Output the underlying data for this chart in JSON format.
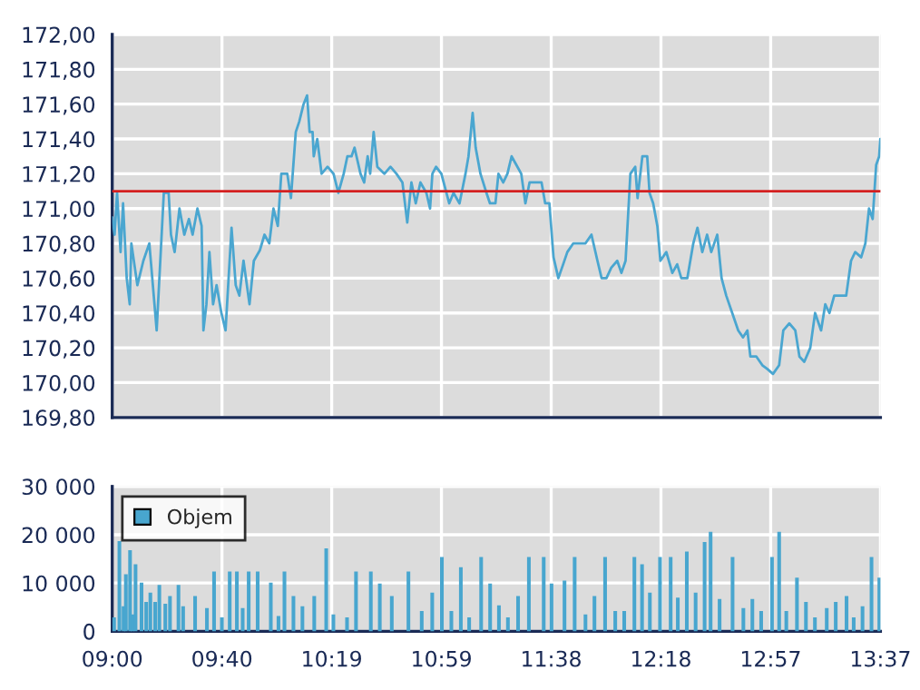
{
  "chart_data": [
    {
      "type": "line",
      "grid": true,
      "tick_labels": "y",
      "xlim": [
        9.0,
        13.6167
      ],
      "ylim": [
        169.8,
        172.0
      ],
      "xticks": [
        {
          "value": 9.0,
          "label": null
        },
        {
          "value": 9.6595,
          "label": null
        },
        {
          "value": 10.319,
          "label": null
        },
        {
          "value": 10.9786,
          "label": null
        },
        {
          "value": 11.6381,
          "label": null
        },
        {
          "value": 12.2976,
          "label": null
        },
        {
          "value": 12.9571,
          "label": null
        },
        {
          "value": 13.6167,
          "label": null
        }
      ],
      "yticks": [
        {
          "value": 169.8,
          "label": "169,80"
        },
        {
          "value": 170.0,
          "label": "170,00"
        },
        {
          "value": 170.2,
          "label": "170,20"
        },
        {
          "value": 170.4,
          "label": "170,40"
        },
        {
          "value": 170.6,
          "label": "170,60"
        },
        {
          "value": 170.8,
          "label": "170,80"
        },
        {
          "value": 171.0,
          "label": "171,00"
        },
        {
          "value": 171.2,
          "label": "171,20"
        },
        {
          "value": 171.4,
          "label": "171,40"
        },
        {
          "value": 171.6,
          "label": "171,60"
        },
        {
          "value": 171.8,
          "label": "171,80"
        },
        {
          "value": 172.0,
          "label": "172,00"
        }
      ],
      "ref_lines": [
        {
          "axis": "y",
          "value": 171.1,
          "color": "#d42020"
        }
      ],
      "series": [
        {
          "color": "#4aa6d0",
          "x": [
            9.0,
            9.014,
            9.029,
            9.05,
            9.065,
            9.087,
            9.105,
            9.115,
            9.151,
            9.187,
            9.223,
            9.267,
            9.31,
            9.339,
            9.353,
            9.375,
            9.404,
            9.433,
            9.461,
            9.483,
            9.512,
            9.537,
            9.548,
            9.566,
            9.584,
            9.606,
            9.627,
            9.656,
            9.681,
            9.717,
            9.742,
            9.764,
            9.789,
            9.825,
            9.851,
            9.887,
            9.915,
            9.944,
            9.969,
            9.995,
            10.016,
            10.052,
            10.074,
            10.103,
            10.124,
            10.15,
            10.171,
            10.186,
            10.204,
            10.211,
            10.232,
            10.258,
            10.294,
            10.33,
            10.359,
            10.391,
            10.413,
            10.438,
            10.456,
            10.492,
            10.514,
            10.535,
            10.55,
            10.571,
            10.593,
            10.636,
            10.672,
            10.708,
            10.744,
            10.773,
            10.798,
            10.824,
            10.852,
            10.888,
            10.91,
            10.924,
            10.946,
            10.978,
            11.025,
            11.051,
            11.087,
            11.123,
            11.141,
            11.166,
            11.184,
            11.213,
            11.249,
            11.27,
            11.303,
            11.321,
            11.35,
            11.375,
            11.4,
            11.429,
            11.458,
            11.483,
            11.508,
            11.537,
            11.58,
            11.602,
            11.627,
            11.652,
            11.681,
            11.71,
            11.735,
            11.771,
            11.844,
            11.88,
            11.916,
            11.941,
            11.97,
            11.999,
            12.035,
            12.06,
            12.085,
            12.114,
            12.143,
            12.157,
            12.186,
            12.215,
            12.229,
            12.251,
            12.276,
            12.294,
            12.33,
            12.366,
            12.395,
            12.42,
            12.456,
            12.492,
            12.517,
            12.546,
            12.575,
            12.6,
            12.636,
            12.662,
            12.69,
            12.726,
            12.762,
            12.791,
            12.817,
            12.835,
            12.871,
            12.907,
            12.935,
            12.971,
            13.008,
            13.033,
            13.069,
            13.105,
            13.13,
            13.159,
            13.195,
            13.224,
            13.26,
            13.285,
            13.31,
            13.339,
            13.375,
            13.411,
            13.44,
            13.465,
            13.501,
            13.526,
            13.548,
            13.57,
            13.591,
            13.609,
            13.616
          ],
          "values": [
            170.95,
            170.85,
            171.09,
            170.75,
            171.03,
            170.6,
            170.45,
            170.8,
            170.56,
            170.7,
            170.8,
            170.3,
            171.09,
            171.09,
            170.85,
            170.75,
            171.0,
            170.85,
            170.94,
            170.85,
            171.0,
            170.9,
            170.3,
            170.45,
            170.75,
            170.45,
            170.56,
            170.4,
            170.3,
            170.89,
            170.56,
            170.5,
            170.7,
            170.45,
            170.7,
            170.76,
            170.85,
            170.8,
            171.0,
            170.9,
            171.2,
            171.2,
            171.06,
            171.44,
            171.5,
            171.6,
            171.65,
            171.44,
            171.44,
            171.3,
            171.4,
            171.2,
            171.24,
            171.2,
            171.09,
            171.2,
            171.3,
            171.3,
            171.35,
            171.2,
            171.15,
            171.3,
            171.2,
            171.44,
            171.24,
            171.2,
            171.24,
            171.2,
            171.15,
            170.92,
            171.15,
            171.03,
            171.15,
            171.09,
            171.0,
            171.2,
            171.24,
            171.2,
            171.03,
            171.09,
            171.03,
            171.2,
            171.3,
            171.55,
            171.35,
            171.2,
            171.09,
            171.03,
            171.03,
            171.2,
            171.15,
            171.2,
            171.3,
            171.25,
            171.2,
            171.03,
            171.15,
            171.15,
            171.15,
            171.03,
            171.03,
            170.72,
            170.6,
            170.68,
            170.75,
            170.8,
            170.8,
            170.85,
            170.7,
            170.6,
            170.6,
            170.66,
            170.7,
            170.63,
            170.7,
            171.2,
            171.24,
            171.06,
            171.3,
            171.3,
            171.09,
            171.03,
            170.9,
            170.7,
            170.75,
            170.63,
            170.68,
            170.6,
            170.6,
            170.8,
            170.89,
            170.75,
            170.85,
            170.75,
            170.85,
            170.6,
            170.5,
            170.4,
            170.3,
            170.26,
            170.3,
            170.15,
            170.15,
            170.1,
            170.08,
            170.05,
            170.1,
            170.3,
            170.34,
            170.3,
            170.15,
            170.12,
            170.2,
            170.4,
            170.3,
            170.45,
            170.4,
            170.5,
            170.5,
            170.5,
            170.7,
            170.75,
            170.72,
            170.8,
            171.0,
            170.94,
            171.25,
            171.3,
            171.4
          ]
        }
      ]
    },
    {
      "type": "bar",
      "grid": true,
      "legend": "top left",
      "xlim": [
        9.0,
        13.6167
      ],
      "ylim": [
        0,
        30000
      ],
      "xticks": [
        {
          "value": 9.0,
          "label": "09:00"
        },
        {
          "value": 9.6595,
          "label": "09:40"
        },
        {
          "value": 10.319,
          "label": "10:19"
        },
        {
          "value": 10.9786,
          "label": "10:59"
        },
        {
          "value": 11.6381,
          "label": "11:38"
        },
        {
          "value": 12.2976,
          "label": "12:18"
        },
        {
          "value": 12.9571,
          "label": "12:57"
        },
        {
          "value": 13.6167,
          "label": "13:37"
        }
      ],
      "yticks": [
        {
          "value": 0,
          "label": "0"
        },
        {
          "value": 10000,
          "label": "10 000"
        },
        {
          "value": 20000,
          "label": "20 000"
        },
        {
          "value": 30000,
          "label": "30 000"
        }
      ],
      "series": [
        {
          "name": "Objem",
          "color": "#48a6cf",
          "x": [
            9.011,
            9.043,
            9.068,
            9.082,
            9.107,
            9.122,
            9.14,
            9.176,
            9.204,
            9.229,
            9.258,
            9.283,
            9.319,
            9.347,
            9.398,
            9.426,
            9.498,
            9.569,
            9.612,
            9.659,
            9.706,
            9.749,
            9.784,
            9.82,
            9.874,
            9.953,
            9.999,
            10.035,
            10.089,
            10.143,
            10.214,
            10.286,
            10.329,
            10.411,
            10.465,
            10.554,
            10.608,
            10.68,
            10.78,
            10.86,
            10.923,
            10.981,
            11.038,
            11.095,
            11.145,
            11.217,
            11.271,
            11.324,
            11.378,
            11.439,
            11.504,
            11.593,
            11.64,
            11.718,
            11.779,
            11.844,
            11.898,
            11.962,
            12.023,
            12.077,
            12.138,
            12.184,
            12.231,
            12.292,
            12.356,
            12.399,
            12.453,
            12.506,
            12.56,
            12.596,
            12.65,
            12.728,
            12.793,
            12.847,
            12.9,
            12.965,
            13.008,
            13.051,
            13.115,
            13.169,
            13.223,
            13.294,
            13.348,
            13.413,
            13.456,
            13.509,
            13.563,
            13.61
          ],
          "values": [
            2900,
            18700,
            5200,
            11800,
            16800,
            3500,
            13900,
            10100,
            6100,
            8000,
            6100,
            9600,
            5700,
            7300,
            9600,
            5200,
            7300,
            4800,
            12400,
            2900,
            12400,
            12400,
            4800,
            12400,
            12400,
            10100,
            3200,
            12400,
            7300,
            5200,
            7300,
            17200,
            3500,
            2900,
            12400,
            12400,
            9900,
            7300,
            12400,
            4200,
            8000,
            15400,
            4200,
            13300,
            2900,
            15400,
            9900,
            5400,
            2900,
            7300,
            15400,
            15400,
            9900,
            10500,
            15400,
            3500,
            7300,
            15400,
            4200,
            4200,
            15400,
            13900,
            8000,
            15400,
            15400,
            7000,
            16500,
            8000,
            18500,
            20600,
            6700,
            15400,
            4800,
            6700,
            4200,
            15400,
            20600,
            4200,
            11100,
            6100,
            2900,
            4800,
            6100,
            7300,
            2900,
            5200,
            15400,
            11100
          ]
        }
      ]
    }
  ]
}
